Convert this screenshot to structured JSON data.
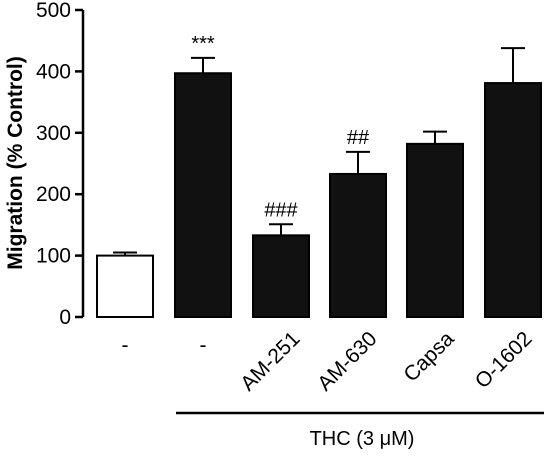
{
  "chart_data": {
    "type": "bar",
    "title": "",
    "xlabel": "",
    "ylabel": "Migration (% Control)",
    "ylim": [
      0,
      500
    ],
    "yticks": [
      0,
      100,
      200,
      300,
      400,
      500
    ],
    "categories": [
      "-",
      "-",
      "AM-251",
      "AM-630",
      "Capsa",
      "O-1602"
    ],
    "values": [
      100,
      397,
      133,
      233,
      282,
      381
    ],
    "errors": [
      5,
      25,
      18,
      36,
      20,
      57
    ],
    "fills": [
      "#ffffff",
      "#111111",
      "#111111",
      "#111111",
      "#111111",
      "#111111"
    ],
    "annotations": [
      "",
      "***",
      "###",
      "##",
      "",
      ""
    ],
    "group_label": "THC (3 μM)",
    "grid": false
  }
}
